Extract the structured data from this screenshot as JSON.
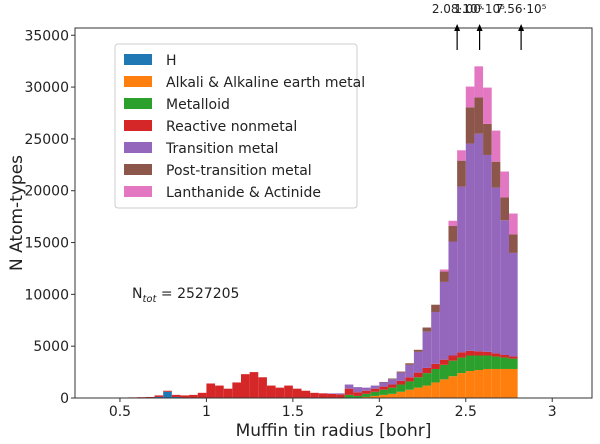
{
  "chart_data": {
    "type": "histogram",
    "stacked": true,
    "xlabel": "Muffin tin radius [bohr]",
    "ylabel": "N Atom-types",
    "xlim": [
      0.24,
      3.23
    ],
    "ylim": [
      0,
      35700
    ],
    "xticks": [
      0.5,
      1.0,
      1.5,
      2.0,
      2.5,
      3.0
    ],
    "yticks": [
      0,
      5000,
      10000,
      15000,
      20000,
      25000,
      30000,
      35000
    ],
    "legend": "upper left",
    "bins": [
      0.5,
      0.55,
      0.6,
      0.65,
      0.7,
      0.75,
      0.8,
      0.85,
      0.9,
      0.95,
      1.0,
      1.05,
      1.1,
      1.15,
      1.2,
      1.25,
      1.3,
      1.35,
      1.4,
      1.45,
      1.5,
      1.55,
      1.6,
      1.65,
      1.7,
      1.75,
      1.8,
      1.85,
      1.9,
      1.95,
      2.0,
      2.05,
      2.1,
      2.15,
      2.2,
      2.25,
      2.3,
      2.35,
      2.4,
      2.45,
      2.5,
      2.55,
      2.6,
      2.65,
      2.7,
      2.75,
      2.8
    ],
    "series": [
      {
        "name": "H",
        "color": "#1f77b4",
        "values": [
          0,
          0,
          0,
          0,
          100,
          600,
          100,
          0,
          0,
          0,
          0,
          0,
          0,
          0,
          0,
          0,
          0,
          0,
          0,
          0,
          0,
          0,
          0,
          0,
          0,
          0,
          0,
          0,
          0,
          0,
          0,
          0,
          0,
          0,
          0,
          0,
          0,
          0,
          0,
          0,
          0,
          0,
          0,
          0,
          0,
          0
        ]
      },
      {
        "name": "Alkali & Alkaline earth metal",
        "color": "#ff7f0e",
        "values": [
          0,
          0,
          0,
          0,
          0,
          0,
          0,
          0,
          0,
          0,
          0,
          0,
          0,
          0,
          0,
          0,
          0,
          0,
          0,
          0,
          0,
          0,
          0,
          0,
          0,
          0,
          0,
          0,
          100,
          200,
          300,
          400,
          600,
          800,
          1000,
          1200,
          1500,
          1800,
          2100,
          2400,
          2600,
          2700,
          2800,
          2800,
          2800,
          2800
        ]
      },
      {
        "name": "Metalloid",
        "color": "#2ca02c",
        "values": [
          0,
          0,
          0,
          0,
          0,
          0,
          0,
          0,
          0,
          0,
          0,
          0,
          0,
          0,
          0,
          0,
          0,
          0,
          0,
          0,
          0,
          0,
          0,
          0,
          0,
          0,
          300,
          200,
          300,
          400,
          500,
          600,
          700,
          800,
          1000,
          1200,
          1300,
          1400,
          1500,
          1500,
          1500,
          1400,
          1300,
          1200,
          1100,
          1000
        ]
      },
      {
        "name": "Reactive nonmetal",
        "color": "#d62728",
        "values": [
          50,
          60,
          80,
          100,
          150,
          100,
          200,
          250,
          300,
          500,
          1400,
          1200,
          900,
          1500,
          2300,
          2500,
          2000,
          1200,
          1000,
          1200,
          900,
          700,
          500,
          450,
          400,
          350,
          600,
          350,
          300,
          300,
          300,
          300,
          350,
          400,
          450,
          500,
          500,
          500,
          500,
          500,
          450,
          400,
          350,
          300,
          250,
          200
        ]
      },
      {
        "name": "Transition metal",
        "color": "#9467bd",
        "values": [
          0,
          0,
          0,
          0,
          0,
          0,
          0,
          0,
          0,
          0,
          0,
          0,
          0,
          0,
          0,
          0,
          0,
          0,
          0,
          0,
          0,
          0,
          0,
          0,
          50,
          100,
          400,
          500,
          300,
          300,
          400,
          500,
          800,
          1200,
          2000,
          3500,
          5000,
          7500,
          11000,
          16000,
          20000,
          21000,
          19000,
          16000,
          13000,
          10000
        ]
      },
      {
        "name": "Post-transition metal",
        "color": "#8c564b",
        "values": [
          0,
          0,
          0,
          0,
          0,
          0,
          0,
          0,
          0,
          0,
          0,
          0,
          0,
          0,
          0,
          0,
          0,
          0,
          0,
          0,
          0,
          0,
          0,
          0,
          0,
          0,
          0,
          0,
          0,
          0,
          50,
          80,
          100,
          150,
          200,
          400,
          700,
          1000,
          1500,
          2500,
          3500,
          3500,
          3000,
          2500,
          2200,
          1800
        ]
      },
      {
        "name": "Lanthanide & Actinide",
        "color": "#e377c2",
        "values": [
          0,
          0,
          0,
          0,
          0,
          0,
          0,
          0,
          0,
          0,
          0,
          0,
          0,
          0,
          0,
          0,
          0,
          0,
          0,
          0,
          0,
          0,
          0,
          0,
          0,
          0,
          0,
          0,
          0,
          0,
          0,
          0,
          0,
          0,
          0,
          0,
          0,
          200,
          500,
          1000,
          2000,
          3000,
          3500,
          3000,
          2500,
          2000
        ]
      }
    ],
    "overflow": [
      {
        "x": 2.45,
        "label": "2.08·10⁵"
      },
      {
        "x": 2.58,
        "label": "1.00·10⁵"
      },
      {
        "x": 2.82,
        "label": "7.56·10⁵"
      }
    ],
    "annotation": {
      "base": "N",
      "sub": "tot",
      "rest": " = 2527205"
    }
  }
}
